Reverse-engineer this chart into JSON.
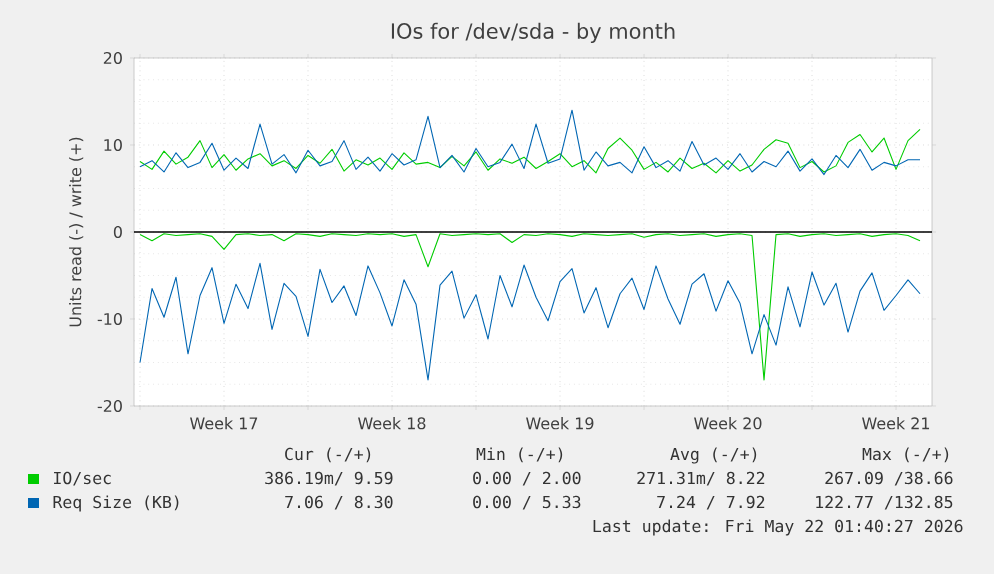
{
  "chart_data": {
    "type": "line",
    "title": "IOs for /dev/sda - by month",
    "ylabel": "Units read (-) / write (+)",
    "x": [
      "2026-04-20T00:00",
      "2026-04-20T12:00",
      "2026-04-21T00:00",
      "2026-04-21T12:00",
      "2026-04-22T00:00",
      "2026-04-22T12:00",
      "2026-04-23T00:00",
      "2026-04-23T12:00",
      "2026-04-24T00:00",
      "2026-04-24T12:00",
      "2026-04-25T00:00",
      "2026-04-25T12:00",
      "2026-04-26T00:00",
      "2026-04-26T12:00",
      "2026-04-27T00:00",
      "2026-04-27T12:00",
      "2026-04-28T00:00",
      "2026-04-28T12:00",
      "2026-04-29T00:00",
      "2026-04-29T12:00",
      "2026-04-30T00:00",
      "2026-04-30T12:00",
      "2026-05-01T00:00",
      "2026-05-01T12:00",
      "2026-05-02T00:00",
      "2026-05-02T12:00",
      "2026-05-03T00:00",
      "2026-05-03T12:00",
      "2026-05-04T00:00",
      "2026-05-04T12:00",
      "2026-05-05T00:00",
      "2026-05-05T12:00",
      "2026-05-06T00:00",
      "2026-05-06T12:00",
      "2026-05-07T00:00",
      "2026-05-07T12:00",
      "2026-05-08T00:00",
      "2026-05-08T12:00",
      "2026-05-09T00:00",
      "2026-05-09T12:00",
      "2026-05-10T00:00",
      "2026-05-10T12:00",
      "2026-05-11T00:00",
      "2026-05-11T12:00",
      "2026-05-12T00:00",
      "2026-05-12T12:00",
      "2026-05-13T00:00",
      "2026-05-13T12:00",
      "2026-05-14T00:00",
      "2026-05-14T12:00",
      "2026-05-15T00:00",
      "2026-05-15T12:00",
      "2026-05-16T00:00",
      "2026-05-16T12:00",
      "2026-05-17T00:00",
      "2026-05-17T12:00",
      "2026-05-18T00:00",
      "2026-05-18T12:00",
      "2026-05-19T00:00",
      "2026-05-19T12:00",
      "2026-05-20T00:00",
      "2026-05-20T12:00",
      "2026-05-21T00:00",
      "2026-05-21T12:00",
      "2026-05-22T00:00",
      "2026-05-22T12:00"
    ],
    "series": [
      {
        "name": "IO/sec",
        "color": "#00cc00",
        "values": [
          8.1,
          7.2,
          9.3,
          7.8,
          8.6,
          10.5,
          7.4,
          8.9,
          7.1,
          8.4,
          9.0,
          7.6,
          8.2,
          7.3,
          8.8,
          7.9,
          9.5,
          7.0,
          8.3,
          7.7,
          8.5,
          7.2,
          9.1,
          7.8,
          8.0,
          7.4,
          8.7,
          7.6,
          9.2,
          7.1,
          8.4,
          7.9,
          8.6,
          7.3,
          8.1,
          9.0,
          7.5,
          8.2,
          6.8,
          9.6,
          10.8,
          9.4,
          7.2,
          8.0,
          6.9,
          8.5,
          7.3,
          7.9,
          6.8,
          8.2,
          7.0,
          7.7,
          9.5,
          10.6,
          10.2,
          7.4,
          8.1,
          6.9,
          7.6,
          10.3,
          11.2,
          9.2,
          10.8,
          7.2,
          10.5,
          11.8
        ]
      },
      {
        "color": "#00cc00",
        "values": [
          -0.3,
          -1.0,
          -0.2,
          -0.4,
          -0.3,
          -0.2,
          -0.5,
          -2.0,
          -0.3,
          -0.2,
          -0.4,
          -0.3,
          -1.0,
          -0.2,
          -0.3,
          -0.5,
          -0.2,
          -0.3,
          -0.4,
          -0.2,
          -0.3,
          -0.2,
          -0.5,
          -0.3,
          -4.0,
          -0.2,
          -0.4,
          -0.3,
          -0.2,
          -0.3,
          -0.2,
          -1.2,
          -0.3,
          -0.4,
          -0.2,
          -0.3,
          -0.5,
          -0.2,
          -0.3,
          -0.4,
          -0.3,
          -0.2,
          -0.6,
          -0.3,
          -0.2,
          -0.4,
          -0.3,
          -0.2,
          -0.5,
          -0.3,
          -0.2,
          -0.4,
          -17.0,
          -0.3,
          -0.2,
          -0.5,
          -0.3,
          -0.2,
          -0.4,
          -0.3,
          -0.2,
          -0.5,
          -0.3,
          -0.2,
          -0.4,
          -1.0
        ]
      },
      {
        "name": "Req Size (KB)",
        "color": "#0066b3",
        "values": [
          7.5,
          8.2,
          6.9,
          9.1,
          7.4,
          8.0,
          10.2,
          7.1,
          8.5,
          7.3,
          12.4,
          7.8,
          8.9,
          6.8,
          9.4,
          7.6,
          8.1,
          10.5,
          7.2,
          8.6,
          7.0,
          9.0,
          7.7,
          8.3,
          13.3,
          7.4,
          8.8,
          6.9,
          9.6,
          7.5,
          8.0,
          10.1,
          7.3,
          12.4,
          7.9,
          8.4,
          14.0,
          7.1,
          9.2,
          7.6,
          8.0,
          6.8,
          9.8,
          7.4,
          8.2,
          7.0,
          10.4,
          7.7,
          8.5,
          7.2,
          9.0,
          6.9,
          8.1,
          7.5,
          9.3,
          7.0,
          8.4,
          6.6,
          8.8,
          7.4,
          9.5,
          7.1,
          8.0,
          7.6,
          8.3,
          8.3
        ]
      },
      {
        "color": "#0066b3",
        "values": [
          -15.0,
          -6.5,
          -9.8,
          -5.2,
          -14.0,
          -7.3,
          -4.1,
          -10.5,
          -6.0,
          -8.8,
          -3.6,
          -11.2,
          -5.9,
          -7.4,
          -12.0,
          -4.3,
          -8.1,
          -6.2,
          -9.6,
          -3.9,
          -7.0,
          -10.8,
          -5.5,
          -8.3,
          -17.0,
          -6.1,
          -4.5,
          -9.9,
          -7.2,
          -12.3,
          -5.0,
          -8.6,
          -3.8,
          -7.5,
          -10.2,
          -5.7,
          -4.2,
          -9.3,
          -6.4,
          -11.0,
          -7.1,
          -5.3,
          -8.9,
          -3.9,
          -7.7,
          -10.6,
          -6.0,
          -4.8,
          -9.1,
          -5.6,
          -8.2,
          -14.0,
          -9.5,
          -13.0,
          -6.3,
          -10.9,
          -4.6,
          -8.4,
          -5.9,
          -11.5,
          -6.8,
          -4.7,
          -9.0,
          -7.3,
          -5.5,
          -7.1
        ]
      }
    ],
    "xlim": [
      "2026-04-19T18:00",
      "2026-05-23T00:00"
    ],
    "xticks": [
      {
        "value": "2026-04-20T00:00",
        "label": null
      },
      {
        "value": "2026-04-23T12:00",
        "label": "Week 17"
      },
      {
        "value": "2026-04-27T00:00",
        "label": null
      },
      {
        "value": "2026-04-30T12:00",
        "label": "Week 18"
      },
      {
        "value": "2026-05-04T00:00",
        "label": null
      },
      {
        "value": "2026-05-07T12:00",
        "label": "Week 19"
      },
      {
        "value": "2026-05-11T00:00",
        "label": null
      },
      {
        "value": "2026-05-14T12:00",
        "label": "Week 20"
      },
      {
        "value": "2026-05-18T00:00",
        "label": null
      },
      {
        "value": "2026-05-21T12:00",
        "label": "Week 21"
      }
    ],
    "ylim": [
      -20,
      20
    ],
    "yticks": [
      -20,
      -10,
      0,
      10,
      20
    ],
    "ref_lines": [
      {
        "axis": "y",
        "value": 0,
        "color": "#000000"
      }
    ],
    "grid": true,
    "legend": "bottom",
    "annotations": [
      "Cur (-/+)",
      "Min (-/+)",
      "Avg (-/+)",
      "Max (-/+)",
      "386.19m/ 9.59",
      "0.00 / 2.00",
      "271.31m/ 8.22",
      "267.09 /38.66",
      "7.06 / 8.30",
      "0.00 / 5.33",
      "7.24 / 7.92",
      "122.77 /132.85",
      "Last update: Fri May 22 01:40:27 2026"
    ]
  }
}
